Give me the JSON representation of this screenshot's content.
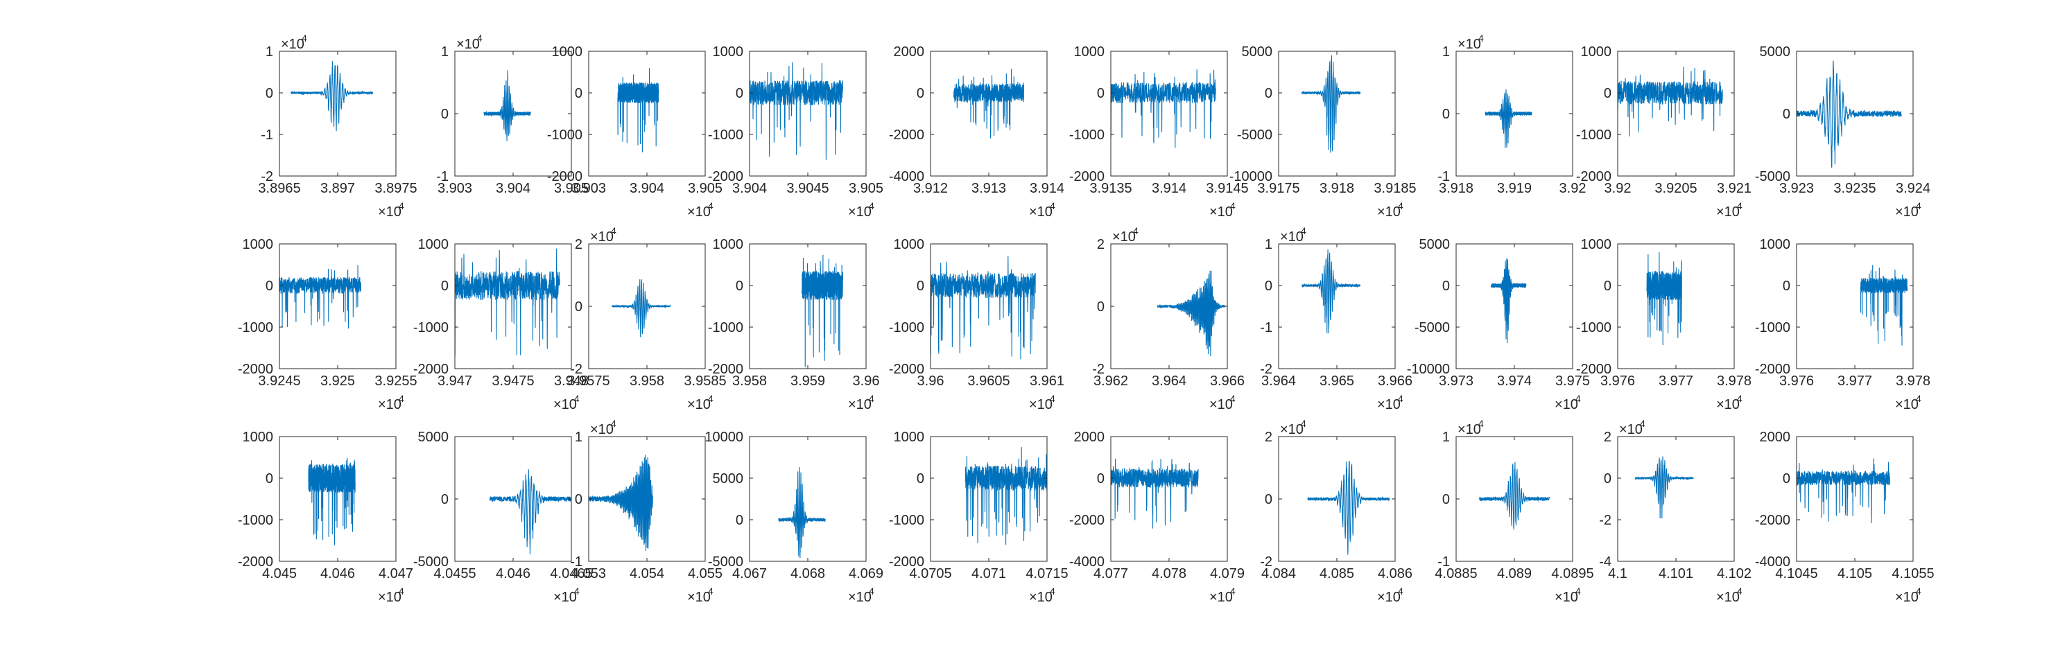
{
  "figure": {
    "background": "#ffffff",
    "line_color": "#0072BD",
    "axis_color": "#262626",
    "grid_rows": 3,
    "grid_cols": 10
  },
  "chart_data": [
    {
      "type": "line",
      "row": 0,
      "col": 0,
      "xlim": [
        3.8965,
        3.8975
      ],
      "xticks": [
        "3.8965",
        "3.897",
        "3.8975"
      ],
      "ylim": [
        -2,
        1
      ],
      "yticks": [
        "-2",
        "-1",
        "0",
        "1"
      ],
      "x_exponent": "4",
      "y_exponent": "4",
      "series": [
        {
          "x_range": [
            3.8966,
            3.8973
          ],
          "burst": 0.54,
          "envelope": "packet",
          "amp_pos": 0.9,
          "amp_neg": 1.0,
          "noise": 0.03,
          "seed": 101
        }
      ]
    },
    {
      "type": "line",
      "row": 0,
      "col": 1,
      "xlim": [
        3.903,
        3.905
      ],
      "xticks": [
        "3.903",
        "3.904",
        "3.905"
      ],
      "ylim": [
        -1,
        1
      ],
      "yticks": [
        "-1",
        "0",
        "1"
      ],
      "x_exponent": "",
      "y_exponent": "4",
      "series": [
        {
          "x_range": [
            3.9035,
            3.9043
          ],
          "burst": 0.5,
          "envelope": "packet",
          "amp_pos": 0.7,
          "amp_neg": 0.5,
          "noise": 0.03,
          "seed": 102
        }
      ]
    },
    {
      "type": "line",
      "row": 0,
      "col": 2,
      "xlim": [
        3.903,
        3.905
      ],
      "xticks": [
        "3.903",
        "3.904",
        "3.905"
      ],
      "ylim": [
        -2000,
        1000
      ],
      "yticks": [
        "-2000",
        "-1000",
        "0",
        "1000"
      ],
      "x_exponent": "4",
      "y_exponent": "",
      "series": [
        {
          "x_range": [
            3.9035,
            3.9042
          ],
          "burst": 0.45,
          "envelope": "noise",
          "amp_pos": 600,
          "amp_neg": 1200,
          "noise": 250,
          "seed": 103
        }
      ]
    },
    {
      "type": "line",
      "row": 0,
      "col": 3,
      "xlim": [
        3.904,
        3.905
      ],
      "xticks": [
        "3.904",
        "3.9045",
        "3.905"
      ],
      "ylim": [
        -2000,
        1000
      ],
      "yticks": [
        "-2000",
        "-1000",
        "0",
        "1000"
      ],
      "x_exponent": "4",
      "y_exponent": "",
      "series": [
        {
          "x_range": [
            3.904,
            3.9048
          ],
          "burst": 0.5,
          "envelope": "noise",
          "amp_pos": 600,
          "amp_neg": 1600,
          "noise": 300,
          "seed": 104
        }
      ]
    },
    {
      "type": "line",
      "row": 0,
      "col": 4,
      "xlim": [
        3.912,
        3.914
      ],
      "xticks": [
        "3.912",
        "3.913",
        "3.914"
      ],
      "ylim": [
        -4000,
        2000
      ],
      "yticks": [
        "-4000",
        "-2000",
        "0",
        "2000"
      ],
      "x_exponent": "4",
      "y_exponent": "",
      "series": [
        {
          "x_range": [
            3.9124,
            3.9136
          ],
          "burst": 0.5,
          "envelope": "noise",
          "amp_pos": 900,
          "amp_neg": 2000,
          "noise": 450,
          "seed": 105
        }
      ]
    },
    {
      "type": "line",
      "row": 0,
      "col": 5,
      "xlim": [
        3.9135,
        3.9145
      ],
      "xticks": [
        "3.9135",
        "3.914",
        "3.9145"
      ],
      "ylim": [
        -2000,
        1000
      ],
      "yticks": [
        "-2000",
        "-1000",
        "0",
        "1000"
      ],
      "x_exponent": "4",
      "y_exponent": "",
      "series": [
        {
          "x_range": [
            3.9135,
            3.9144
          ],
          "burst": 0.5,
          "envelope": "noise",
          "amp_pos": 400,
          "amp_neg": 1200,
          "noise": 250,
          "seed": 106
        }
      ]
    },
    {
      "type": "line",
      "row": 0,
      "col": 6,
      "xlim": [
        3.9175,
        3.9185
      ],
      "xticks": [
        "3.9175",
        "3.918",
        "3.9185"
      ],
      "ylim": [
        -10000,
        5000
      ],
      "yticks": [
        "-10000",
        "-5000",
        "0",
        "5000"
      ],
      "x_exponent": "4",
      "y_exponent": "",
      "series": [
        {
          "x_range": [
            3.9177,
            3.9182
          ],
          "burst": 0.5,
          "envelope": "packet",
          "amp_pos": 5000,
          "amp_neg": 9500,
          "noise": 150,
          "seed": 107
        }
      ]
    },
    {
      "type": "line",
      "row": 0,
      "col": 7,
      "xlim": [
        3.918,
        3.92
      ],
      "xticks": [
        "3.918",
        "3.919",
        "3.92"
      ],
      "ylim": [
        -1,
        1
      ],
      "yticks": [
        "-1",
        "0",
        "1"
      ],
      "x_exponent": "",
      "y_exponent": "4",
      "series": [
        {
          "x_range": [
            3.9185,
            3.9193
          ],
          "burst": 0.45,
          "envelope": "packet",
          "amp_pos": 0.5,
          "amp_neg": 0.6,
          "noise": 0.03,
          "seed": 108
        }
      ]
    },
    {
      "type": "line",
      "row": 0,
      "col": 8,
      "xlim": [
        3.92,
        3.921
      ],
      "xticks": [
        "3.92",
        "3.9205",
        "3.921"
      ],
      "ylim": [
        -2000,
        1000
      ],
      "yticks": [
        "-2000",
        "-1000",
        "0",
        "1000"
      ],
      "x_exponent": "4",
      "y_exponent": "",
      "series": [
        {
          "x_range": [
            3.92,
            3.9209
          ],
          "burst": 0.5,
          "envelope": "noise",
          "amp_pos": 500,
          "amp_neg": 1100,
          "noise": 280,
          "seed": 109
        }
      ]
    },
    {
      "type": "line",
      "row": 0,
      "col": 9,
      "xlim": [
        3.923,
        3.924
      ],
      "xticks": [
        "3.923",
        "3.9235",
        "3.924"
      ],
      "ylim": [
        -5000,
        5000
      ],
      "yticks": [
        "-5000",
        "0",
        "5000"
      ],
      "x_exponent": "4",
      "y_exponent": "",
      "series": [
        {
          "x_range": [
            3.923,
            3.9239
          ],
          "burst": 0.35,
          "envelope": "packet",
          "amp_pos": 4800,
          "amp_neg": 4500,
          "noise": 250,
          "seed": 110
        }
      ]
    },
    {
      "type": "line",
      "row": 1,
      "col": 0,
      "xlim": [
        3.9245,
        3.9255
      ],
      "xticks": [
        "3.9245",
        "3.925",
        "3.9255"
      ],
      "ylim": [
        -2000,
        1000
      ],
      "yticks": [
        "-2000",
        "-1000",
        "0",
        "1000"
      ],
      "x_exponent": "4",
      "y_exponent": "",
      "series": [
        {
          "x_range": [
            3.9245,
            3.9252
          ],
          "burst": 0.45,
          "envelope": "noise",
          "amp_pos": 350,
          "amp_neg": 1000,
          "noise": 200,
          "seed": 201
        }
      ]
    },
    {
      "type": "line",
      "row": 1,
      "col": 1,
      "xlim": [
        3.947,
        3.948
      ],
      "xticks": [
        "3.947",
        "3.9475",
        "3.948"
      ],
      "ylim": [
        -2000,
        1000
      ],
      "yticks": [
        "-2000",
        "-1000",
        "0",
        "1000"
      ],
      "x_exponent": "4",
      "y_exponent": "",
      "series": [
        {
          "x_range": [
            3.947,
            3.9479
          ],
          "burst": 0.5,
          "envelope": "noise",
          "amp_pos": 700,
          "amp_neg": 1800,
          "noise": 350,
          "seed": 202
        }
      ]
    },
    {
      "type": "line",
      "row": 1,
      "col": 2,
      "xlim": [
        3.9575,
        3.9585
      ],
      "xticks": [
        "3.9575",
        "3.958",
        "3.9585"
      ],
      "ylim": [
        -2,
        2
      ],
      "yticks": [
        "-2",
        "0",
        "2"
      ],
      "x_exponent": "4",
      "y_exponent": "4",
      "series": [
        {
          "x_range": [
            3.9577,
            3.9582
          ],
          "burst": 0.5,
          "envelope": "packet",
          "amp_pos": 1.0,
          "amp_neg": 1.1,
          "noise": 0.03,
          "seed": 203
        }
      ]
    },
    {
      "type": "line",
      "row": 1,
      "col": 3,
      "xlim": [
        3.958,
        3.96
      ],
      "xticks": [
        "3.958",
        "3.959",
        "3.96"
      ],
      "ylim": [
        -2000,
        1000
      ],
      "yticks": [
        "-2000",
        "-1000",
        "0",
        "1000"
      ],
      "x_exponent": "4",
      "y_exponent": "",
      "series": [
        {
          "x_range": [
            3.9589,
            3.9596
          ],
          "burst": 0.5,
          "envelope": "noise",
          "amp_pos": 650,
          "amp_neg": 1700,
          "noise": 350,
          "seed": 204
        }
      ]
    },
    {
      "type": "line",
      "row": 1,
      "col": 4,
      "xlim": [
        3.96,
        3.961
      ],
      "xticks": [
        "3.96",
        "3.9605",
        "3.961"
      ],
      "ylim": [
        -2000,
        1000
      ],
      "yticks": [
        "-2000",
        "-1000",
        "0",
        "1000"
      ],
      "x_exponent": "4",
      "y_exponent": "",
      "series": [
        {
          "x_range": [
            3.96,
            3.9609
          ],
          "burst": 0.5,
          "envelope": "noise",
          "amp_pos": 500,
          "amp_neg": 1600,
          "noise": 300,
          "seed": 205
        }
      ]
    },
    {
      "type": "line",
      "row": 1,
      "col": 5,
      "xlim": [
        3.962,
        3.966
      ],
      "xticks": [
        "3.962",
        "3.964",
        "3.966"
      ],
      "ylim": [
        -2,
        2
      ],
      "yticks": [
        "-2",
        "0",
        "2"
      ],
      "x_exponent": "4",
      "y_exponent": "4",
      "series": [
        {
          "x_range": [
            3.9636,
            3.9659
          ],
          "burst": 0.8,
          "envelope": "ramp",
          "amp_pos": 1.3,
          "amp_neg": 1.8,
          "noise": 0.04,
          "seed": 206
        }
      ]
    },
    {
      "type": "line",
      "row": 1,
      "col": 6,
      "xlim": [
        3.964,
        3.966
      ],
      "xticks": [
        "3.964",
        "3.965",
        "3.966"
      ],
      "ylim": [
        -2,
        1
      ],
      "yticks": [
        "-2",
        "-1",
        "0",
        "1"
      ],
      "x_exponent": "4",
      "y_exponent": "4",
      "series": [
        {
          "x_range": [
            3.9644,
            3.9654
          ],
          "burst": 0.45,
          "envelope": "packet",
          "amp_pos": 1.0,
          "amp_neg": 1.3,
          "noise": 0.03,
          "seed": 207
        }
      ]
    },
    {
      "type": "line",
      "row": 1,
      "col": 7,
      "xlim": [
        3.973,
        3.975
      ],
      "xticks": [
        "3.973",
        "3.974",
        "3.975"
      ],
      "ylim": [
        -10000,
        5000
      ],
      "yticks": [
        "-10000",
        "-5000",
        "0",
        "5000"
      ],
      "x_exponent": "4",
      "y_exponent": "",
      "series": [
        {
          "x_range": [
            3.9736,
            3.9742
          ],
          "burst": 0.45,
          "envelope": "packet",
          "amp_pos": 3800,
          "amp_neg": 7500,
          "noise": 250,
          "seed": 208
        }
      ]
    },
    {
      "type": "line",
      "row": 1,
      "col": 8,
      "xlim": [
        3.976,
        3.978
      ],
      "xticks": [
        "3.976",
        "3.977",
        "3.978"
      ],
      "ylim": [
        -2000,
        1000
      ],
      "yticks": [
        "-2000",
        "-1000",
        "0",
        "1000"
      ],
      "x_exponent": "4",
      "y_exponent": "",
      "series": [
        {
          "x_range": [
            3.9765,
            3.9771
          ],
          "burst": 0.5,
          "envelope": "noise",
          "amp_pos": 500,
          "amp_neg": 1400,
          "noise": 350,
          "seed": 209
        }
      ]
    },
    {
      "type": "line",
      "row": 1,
      "col": 9,
      "xlim": [
        3.976,
        3.978
      ],
      "xticks": [
        "3.976",
        "3.977",
        "3.978"
      ],
      "ylim": [
        -2000,
        1000
      ],
      "yticks": [
        "-2000",
        "-1000",
        "0",
        "1000"
      ],
      "x_exponent": "4",
      "y_exponent": "",
      "series": [
        {
          "x_range": [
            3.9771,
            3.9779
          ],
          "burst": 0.35,
          "envelope": "noise",
          "amp_pos": 400,
          "amp_neg": 1300,
          "noise": 180,
          "seed": 210
        }
      ]
    },
    {
      "type": "line",
      "row": 2,
      "col": 0,
      "xlim": [
        4.045,
        4.047
      ],
      "xticks": [
        "4.045",
        "4.046",
        "4.047"
      ],
      "ylim": [
        -2000,
        1000
      ],
      "yticks": [
        "-2000",
        "-1000",
        "0",
        "1000"
      ],
      "x_exponent": "4",
      "y_exponent": "",
      "series": [
        {
          "x_range": [
            4.0455,
            4.0463
          ],
          "burst": 0.5,
          "envelope": "noise",
          "amp_pos": 400,
          "amp_neg": 1500,
          "noise": 350,
          "seed": 301
        }
      ]
    },
    {
      "type": "line",
      "row": 2,
      "col": 1,
      "xlim": [
        4.0455,
        4.0465
      ],
      "xticks": [
        "4.0455",
        "4.046",
        "4.0465"
      ],
      "ylim": [
        -5000,
        5000
      ],
      "yticks": [
        "-5000",
        "0",
        "5000"
      ],
      "x_exponent": "4",
      "y_exponent": "",
      "series": [
        {
          "x_range": [
            4.0458,
            4.04655
          ],
          "burst": 0.45,
          "envelope": "packet",
          "amp_pos": 2500,
          "amp_neg": 4500,
          "noise": 200,
          "seed": 302
        }
      ]
    },
    {
      "type": "line",
      "row": 2,
      "col": 2,
      "xlim": [
        4.053,
        4.055
      ],
      "xticks": [
        "4.053",
        "4.054",
        "4.055"
      ],
      "ylim": [
        -1,
        1
      ],
      "yticks": [
        "-1",
        "0",
        "1"
      ],
      "x_exponent": "4",
      "y_exponent": "4",
      "series": [
        {
          "x_range": [
            4.053,
            4.0541
          ],
          "burst": 0.93,
          "envelope": "ramp",
          "amp_pos": 0.9,
          "amp_neg": 1.0,
          "noise": 0.04,
          "seed": 303
        }
      ]
    },
    {
      "type": "line",
      "row": 2,
      "col": 3,
      "xlim": [
        4.067,
        4.069
      ],
      "xticks": [
        "4.067",
        "4.068",
        "4.069"
      ],
      "ylim": [
        -5000,
        10000
      ],
      "yticks": [
        "-5000",
        "0",
        "5000",
        "10000"
      ],
      "x_exponent": "4",
      "y_exponent": "",
      "series": [
        {
          "x_range": [
            4.0675,
            4.0683
          ],
          "burst": 0.45,
          "envelope": "packet",
          "amp_pos": 7000,
          "amp_neg": 4800,
          "noise": 200,
          "seed": 304
        }
      ]
    },
    {
      "type": "line",
      "row": 2,
      "col": 4,
      "xlim": [
        4.0705,
        4.0715
      ],
      "xticks": [
        "4.0705",
        "4.071",
        "4.0715"
      ],
      "ylim": [
        -2000,
        1000
      ],
      "yticks": [
        "-2000",
        "-1000",
        "0",
        "1000"
      ],
      "x_exponent": "4",
      "y_exponent": "",
      "series": [
        {
          "x_range": [
            4.0708,
            4.0715
          ],
          "burst": 0.5,
          "envelope": "noise",
          "amp_pos": 500,
          "amp_neg": 1400,
          "noise": 300,
          "seed": 305
        }
      ]
    },
    {
      "type": "line",
      "row": 2,
      "col": 5,
      "xlim": [
        4.077,
        4.079
      ],
      "xticks": [
        "4.077",
        "4.078",
        "4.079"
      ],
      "ylim": [
        -4000,
        2000
      ],
      "yticks": [
        "-4000",
        "-2000",
        "0",
        "2000"
      ],
      "x_exponent": "4",
      "y_exponent": "",
      "series": [
        {
          "x_range": [
            4.077,
            4.0785
          ],
          "burst": 0.5,
          "envelope": "noise",
          "amp_pos": 900,
          "amp_neg": 2200,
          "noise": 450,
          "seed": 306
        }
      ]
    },
    {
      "type": "line",
      "row": 2,
      "col": 6,
      "xlim": [
        4.084,
        4.086
      ],
      "xticks": [
        "4.084",
        "4.085",
        "4.086"
      ],
      "ylim": [
        -2,
        2
      ],
      "yticks": [
        "-2",
        "0",
        "2"
      ],
      "x_exponent": "4",
      "y_exponent": "4",
      "series": [
        {
          "x_range": [
            4.0845,
            4.0859
          ],
          "burst": 0.5,
          "envelope": "packet",
          "amp_pos": 1.5,
          "amp_neg": 1.9,
          "noise": 0.05,
          "seed": 307
        }
      ]
    },
    {
      "type": "line",
      "row": 2,
      "col": 7,
      "xlim": [
        4.0885,
        4.0895
      ],
      "xticks": [
        "4.0885",
        "4.089",
        "4.0895"
      ],
      "ylim": [
        -1,
        1
      ],
      "yticks": [
        "-1",
        "0",
        "1"
      ],
      "x_exponent": "4",
      "y_exponent": "4",
      "series": [
        {
          "x_range": [
            4.0887,
            4.0893
          ],
          "burst": 0.5,
          "envelope": "packet",
          "amp_pos": 0.7,
          "amp_neg": 0.6,
          "noise": 0.03,
          "seed": 308
        }
      ]
    },
    {
      "type": "line",
      "row": 2,
      "col": 8,
      "xlim": [
        4.1,
        4.102
      ],
      "xticks": [
        "4.1",
        "4.101",
        "4.102"
      ],
      "ylim": [
        -4,
        2
      ],
      "yticks": [
        "-4",
        "-2",
        "0",
        "2"
      ],
      "x_exponent": "4",
      "y_exponent": "4",
      "series": [
        {
          "x_range": [
            4.1003,
            4.1013
          ],
          "burst": 0.45,
          "envelope": "packet",
          "amp_pos": 1.3,
          "amp_neg": 2.1,
          "noise": 0.05,
          "seed": 309
        }
      ]
    },
    {
      "type": "line",
      "row": 2,
      "col": 9,
      "xlim": [
        4.1045,
        4.1055
      ],
      "xticks": [
        "4.1045",
        "4.105",
        "4.1055"
      ],
      "ylim": [
        -4000,
        2000
      ],
      "yticks": [
        "-4000",
        "-2000",
        "0",
        "2000"
      ],
      "x_exponent": "4",
      "y_exponent": "",
      "series": [
        {
          "x_range": [
            4.1045,
            4.1053
          ],
          "burst": 0.4,
          "envelope": "noise",
          "amp_pos": 700,
          "amp_neg": 2200,
          "noise": 350,
          "seed": 310
        }
      ]
    }
  ]
}
